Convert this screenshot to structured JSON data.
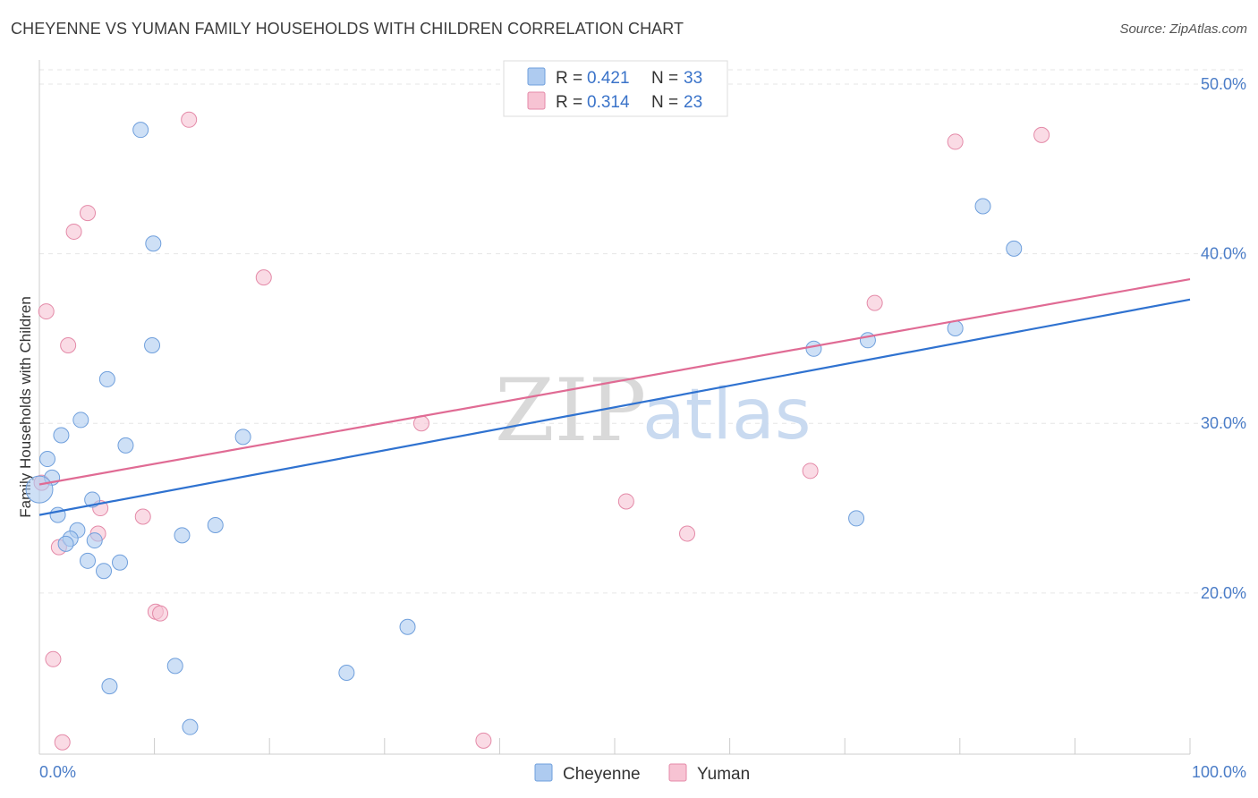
{
  "title": "CHEYENNE VS YUMAN FAMILY HOUSEHOLDS WITH CHILDREN CORRELATION CHART",
  "source": "Source: ZipAtlas.com",
  "watermark": {
    "zip": "ZIP",
    "atlas": "atlas"
  },
  "legend": {
    "cheyenne": {
      "r_label": "R = ",
      "r": "0.421",
      "n_label": "N = ",
      "n": "33"
    },
    "yuman": {
      "r_label": "R = ",
      "r": "0.314",
      "n_label": "N = ",
      "n": "23"
    }
  },
  "bottom_legend": {
    "cheyenne": "Cheyenne",
    "yuman": "Yuman"
  },
  "colors": {
    "cheyenne_fill": "#aecbf0",
    "cheyenne_stroke": "#6f9fdc",
    "cheyenne_line": "#2f72d0",
    "yuman_fill": "#f7c3d3",
    "yuman_stroke": "#e48aa8",
    "yuman_line": "#e06b94",
    "axis_text": "#4a7cc7"
  },
  "chart_data": {
    "type": "scatter",
    "title": "CHEYENNE VS YUMAN FAMILY HOUSEHOLDS WITH CHILDREN CORRELATION CHART",
    "xlabel": "",
    "ylabel": "Family Households with Children",
    "xlim": [
      0,
      100
    ],
    "ylim": [
      10.5,
      51
    ],
    "x_tick_labels": [
      "0.0%",
      "100.0%"
    ],
    "y_ticks": [
      20,
      30,
      40,
      50
    ],
    "y_tick_labels": [
      "20.0%",
      "30.0%",
      "40.0%",
      "50.0%"
    ],
    "grid": true,
    "series": [
      {
        "name": "Cheyenne",
        "points": [
          [
            8.8,
            47.3
          ],
          [
            9.9,
            40.6
          ],
          [
            9.8,
            34.6
          ],
          [
            5.9,
            32.6
          ],
          [
            3.6,
            30.2
          ],
          [
            1.9,
            29.3
          ],
          [
            7.5,
            28.7
          ],
          [
            17.7,
            29.2
          ],
          [
            0.7,
            27.9
          ],
          [
            1.1,
            26.8
          ],
          [
            0.0,
            26.1
          ],
          [
            4.6,
            25.5
          ],
          [
            1.6,
            24.6
          ],
          [
            3.3,
            23.7
          ],
          [
            2.7,
            23.2
          ],
          [
            2.3,
            22.9
          ],
          [
            4.8,
            23.1
          ],
          [
            12.4,
            23.4
          ],
          [
            15.3,
            24.0
          ],
          [
            4.2,
            21.9
          ],
          [
            7.0,
            21.8
          ],
          [
            5.6,
            21.3
          ],
          [
            32.0,
            18.0
          ],
          [
            11.8,
            15.7
          ],
          [
            6.1,
            14.5
          ],
          [
            26.7,
            15.3
          ],
          [
            13.1,
            12.1
          ],
          [
            82.0,
            42.8
          ],
          [
            84.7,
            40.3
          ],
          [
            79.6,
            35.6
          ],
          [
            67.3,
            34.4
          ],
          [
            72.0,
            34.9
          ],
          [
            71.0,
            24.4
          ]
        ],
        "trend": [
          [
            0,
            24.6
          ],
          [
            100,
            37.3
          ]
        ]
      },
      {
        "name": "Yuman",
        "points": [
          [
            13.0,
            47.9
          ],
          [
            4.2,
            42.4
          ],
          [
            3.0,
            41.3
          ],
          [
            19.5,
            38.6
          ],
          [
            0.6,
            36.6
          ],
          [
            2.5,
            34.6
          ],
          [
            33.2,
            30.0
          ],
          [
            0.2,
            26.5
          ],
          [
            5.3,
            25.0
          ],
          [
            9.0,
            24.5
          ],
          [
            5.1,
            23.5
          ],
          [
            1.7,
            22.7
          ],
          [
            10.1,
            18.9
          ],
          [
            10.5,
            18.8
          ],
          [
            1.2,
            16.1
          ],
          [
            2.0,
            11.2
          ],
          [
            38.6,
            11.3
          ],
          [
            51.0,
            25.4
          ],
          [
            56.3,
            23.5
          ],
          [
            67.0,
            27.2
          ],
          [
            72.6,
            37.1
          ],
          [
            79.6,
            46.6
          ],
          [
            87.1,
            47.0
          ]
        ],
        "trend": [
          [
            0,
            26.4
          ],
          [
            100,
            38.5
          ]
        ]
      }
    ]
  }
}
